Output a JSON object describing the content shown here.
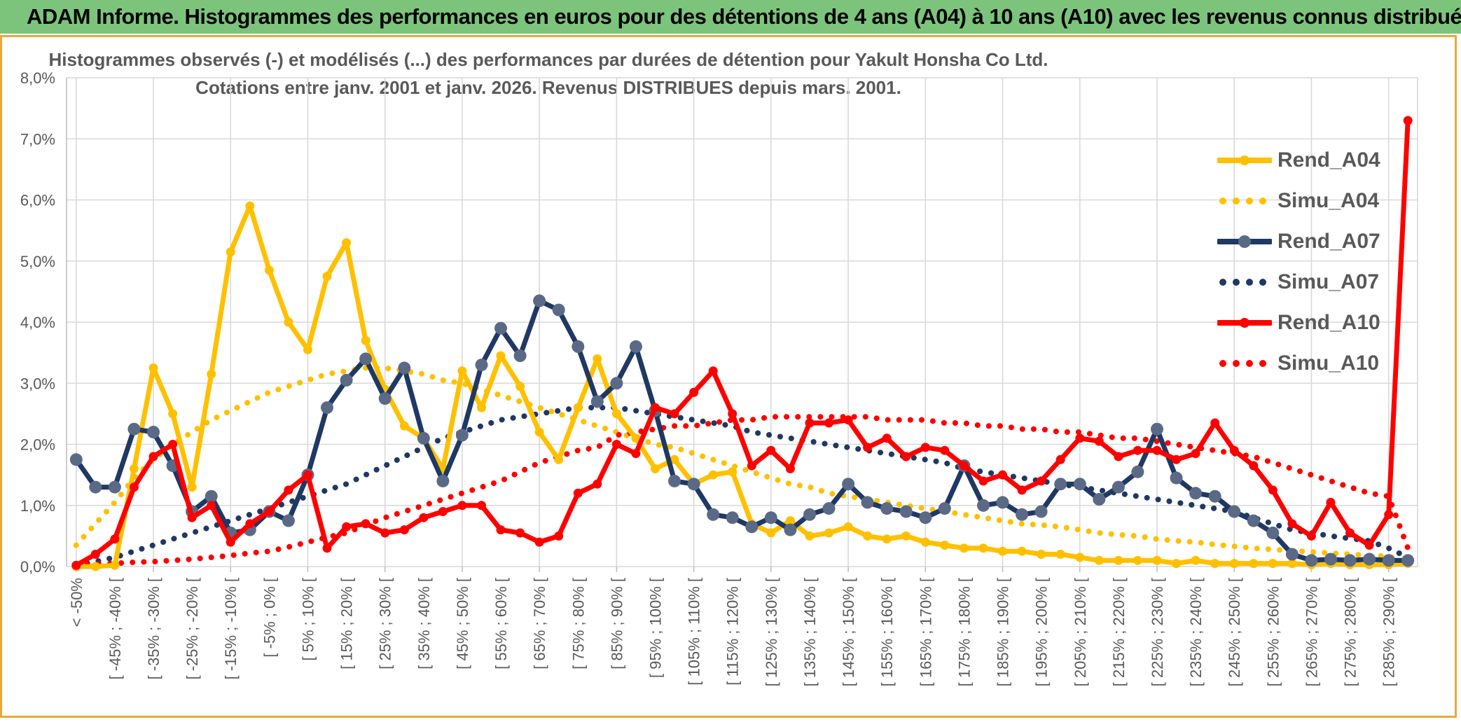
{
  "window": {
    "title": "ADAM Informe. Histogrammes des performances en euros pour des détentions de 4 ans (A04) à 10 ans (A10) avec les revenus connus distribués"
  },
  "chart": {
    "title_line1": "Histogrammes observés (-) et modélisés (...) des performances par durées de détention pour Yakult Honsha Co Ltd.",
    "title_line2": "Cotations entre janv. 2001 et janv. 2026. Revenus DISTRIBUES depuis mars. 2001.",
    "y_ticks": [
      "8,0%",
      "7,0%",
      "6,0%",
      "5,0%",
      "4,0%",
      "3,0%",
      "2,0%",
      "1,0%",
      "0,0%"
    ],
    "colors": {
      "gold": "#FFC000",
      "navy": "#1F3864",
      "red": "#FF0000",
      "navy_marker": "#5A6A86",
      "grid": "#D9D9D9",
      "text": "#595959",
      "frame_gold": "#E9A83B",
      "titlebar_green": "#7CC47C"
    }
  },
  "chart_data": {
    "type": "line",
    "title": "Histogrammes observés (-) et modélisés (...) des performances par durées de détention pour Yakult Honsha Co Ltd. Cotations entre janv. 2001 et janv. 2026. Revenus DISTRIBUES depuis mars. 2001.",
    "xlabel": "",
    "ylabel": "",
    "ylim": [
      0,
      8
    ],
    "grid": true,
    "legend_position": "right-inside",
    "x_label_note": "35 rotated bin labels shown under every second of 70 bins",
    "categories": [
      "< -50%",
      "[ -45% ; -40% [",
      "[ -35% ; -30% [",
      "[ -25% ; -20% [",
      "[ -15% ; -10% [",
      "[ -5% ; 0% [",
      "[ 5% ; 10% [",
      "[ 15% ; 20% [",
      "[ 25% ; 30% [",
      "[ 35% ; 40% [",
      "[ 45% ; 50% [",
      "[ 55% ; 60% [",
      "[ 65% ; 70% [",
      "[ 75% ; 80% [",
      "[ 85% ; 90% [",
      "[ 95% ; 100% [",
      "[ 105% ; 110% [",
      "[ 115% ; 120% [",
      "[ 125% ; 130% [",
      "[ 135% ; 140% [",
      "[ 145% ; 150% [",
      "[ 155% ; 160% [",
      "[ 165% ; 170% [",
      "[ 175% ; 180% [",
      "[ 185% ; 190% [",
      "[ 195% ; 200% [",
      "[ 205% ; 210% [",
      "[ 215% ; 220% [",
      "[ 225% ; 230% [",
      "[ 235% ; 240% [",
      "[ 245% ; 250% [",
      "[ 255% ; 260% [",
      "[ 265% ; 270% [",
      "[ 275% ; 280% [",
      "[ 285% ; 290% ["
    ],
    "series": [
      {
        "name": "Simu_A04",
        "style": "dotted",
        "color": "#FFC000",
        "marker": false,
        "values": [
          0.35,
          0.7,
          1.05,
          1.45,
          1.75,
          2.0,
          2.2,
          2.4,
          2.55,
          2.7,
          2.85,
          2.95,
          3.05,
          3.15,
          3.2,
          3.25,
          3.25,
          3.2,
          3.15,
          3.05,
          3.0,
          2.9,
          2.8,
          2.7,
          2.6,
          2.5,
          2.4,
          2.3,
          2.2,
          2.1,
          2.0,
          1.95,
          1.85,
          1.75,
          1.65,
          1.55,
          1.45,
          1.35,
          1.3,
          1.2,
          1.15,
          1.1,
          1.05,
          1.0,
          0.95,
          0.9,
          0.85,
          0.8,
          0.75,
          0.7,
          0.68,
          0.65,
          0.6,
          0.55,
          0.52,
          0.5,
          0.45,
          0.42,
          0.4,
          0.36,
          0.33,
          0.3,
          0.28,
          0.26,
          0.24,
          0.22,
          0.2,
          0.18,
          0.17,
          0.05
        ]
      },
      {
        "name": "Simu_A07",
        "style": "dotted",
        "color": "#1F3864",
        "marker": false,
        "values": [
          0.02,
          0.08,
          0.15,
          0.25,
          0.35,
          0.45,
          0.55,
          0.65,
          0.75,
          0.85,
          0.95,
          1.05,
          1.15,
          1.25,
          1.35,
          1.5,
          1.65,
          1.8,
          1.95,
          2.1,
          2.2,
          2.3,
          2.4,
          2.45,
          2.5,
          2.55,
          2.6,
          2.6,
          2.6,
          2.55,
          2.5,
          2.45,
          2.4,
          2.35,
          2.3,
          2.2,
          2.15,
          2.1,
          2.05,
          2.0,
          1.95,
          1.9,
          1.85,
          1.8,
          1.75,
          1.7,
          1.6,
          1.55,
          1.5,
          1.45,
          1.4,
          1.35,
          1.3,
          1.25,
          1.2,
          1.15,
          1.1,
          1.05,
          1.0,
          0.95,
          0.9,
          0.8,
          0.7,
          0.6,
          0.55,
          0.5,
          0.46,
          0.42,
          0.3,
          0.15
        ]
      },
      {
        "name": "Simu_A10",
        "style": "dotted",
        "color": "#FF0000",
        "marker": false,
        "values": [
          0.02,
          0.04,
          0.05,
          0.07,
          0.08,
          0.1,
          0.12,
          0.15,
          0.18,
          0.22,
          0.25,
          0.32,
          0.4,
          0.48,
          0.55,
          0.68,
          0.8,
          0.9,
          1.0,
          1.1,
          1.2,
          1.3,
          1.4,
          1.55,
          1.7,
          1.8,
          1.9,
          1.95,
          2.15,
          2.2,
          2.25,
          2.3,
          2.3,
          2.35,
          2.4,
          2.4,
          2.45,
          2.45,
          2.45,
          2.45,
          2.45,
          2.45,
          2.4,
          2.4,
          2.4,
          2.35,
          2.35,
          2.3,
          2.3,
          2.25,
          2.25,
          2.2,
          2.2,
          2.15,
          2.1,
          2.1,
          2.05,
          2.0,
          1.95,
          1.9,
          1.85,
          1.8,
          1.7,
          1.6,
          1.5,
          1.4,
          1.3,
          1.2,
          1.15,
          0.3
        ]
      },
      {
        "name": "Rend_A04",
        "style": "solid",
        "color": "#FFC000",
        "marker": true,
        "marker_color": "#FFC000",
        "values": [
          0.0,
          0.0,
          0.02,
          1.6,
          3.25,
          2.5,
          1.3,
          3.15,
          5.15,
          5.9,
          4.85,
          4.0,
          3.55,
          4.75,
          5.3,
          3.7,
          2.9,
          2.3,
          2.1,
          1.6,
          3.2,
          2.6,
          3.45,
          2.95,
          2.2,
          1.75,
          2.6,
          3.4,
          2.5,
          2.1,
          1.6,
          1.75,
          1.35,
          1.5,
          1.55,
          0.7,
          0.55,
          0.75,
          0.5,
          0.55,
          0.65,
          0.5,
          0.45,
          0.5,
          0.4,
          0.35,
          0.3,
          0.3,
          0.25,
          0.25,
          0.2,
          0.2,
          0.15,
          0.1,
          0.1,
          0.1,
          0.1,
          0.05,
          0.1,
          0.05,
          0.05,
          0.05,
          0.05,
          0.05,
          0.03,
          0.05,
          0.03,
          0.03,
          0.03,
          0.05
        ]
      },
      {
        "name": "Rend_A07",
        "style": "solid",
        "color": "#1F3864",
        "marker": true,
        "marker_color": "#5A6A86",
        "values": [
          1.75,
          1.3,
          1.3,
          2.25,
          2.2,
          1.65,
          0.9,
          1.15,
          0.55,
          0.6,
          0.9,
          0.75,
          1.5,
          2.6,
          3.05,
          3.4,
          2.75,
          3.25,
          2.1,
          1.4,
          2.15,
          3.3,
          3.9,
          3.45,
          4.35,
          4.2,
          3.6,
          2.7,
          3.0,
          3.6,
          2.55,
          1.4,
          1.35,
          0.85,
          0.8,
          0.65,
          0.8,
          0.6,
          0.85,
          0.95,
          1.35,
          1.05,
          0.95,
          0.9,
          0.8,
          0.95,
          1.65,
          1.0,
          1.05,
          0.85,
          0.9,
          1.35,
          1.35,
          1.1,
          1.3,
          1.55,
          2.25,
          1.45,
          1.2,
          1.15,
          0.9,
          0.75,
          0.55,
          0.2,
          0.1,
          0.12,
          0.1,
          0.12,
          0.1,
          0.1
        ]
      },
      {
        "name": "Rend_A10",
        "style": "solid",
        "color": "#FF0000",
        "marker": true,
        "marker_color": "#FF0000",
        "values": [
          0.02,
          0.2,
          0.45,
          1.3,
          1.8,
          2.0,
          0.8,
          1.0,
          0.4,
          0.7,
          0.9,
          1.25,
          1.5,
          0.3,
          0.65,
          0.7,
          0.55,
          0.6,
          0.8,
          0.9,
          1.0,
          1.0,
          0.6,
          0.55,
          0.4,
          0.5,
          1.2,
          1.35,
          2.0,
          1.85,
          2.6,
          2.5,
          2.85,
          3.2,
          2.5,
          1.65,
          1.9,
          1.6,
          2.35,
          2.35,
          2.4,
          1.95,
          2.1,
          1.8,
          1.95,
          1.9,
          1.65,
          1.4,
          1.5,
          1.25,
          1.4,
          1.75,
          2.1,
          2.05,
          1.8,
          1.9,
          1.9,
          1.75,
          1.85,
          2.35,
          1.9,
          1.65,
          1.25,
          0.7,
          0.5,
          1.05,
          0.55,
          0.35,
          0.85,
          7.3
        ]
      }
    ],
    "legend_entries": [
      "Rend_A04",
      "Simu_A04",
      "Rend_A07",
      "Simu_A07",
      "Rend_A10",
      "Simu_A10"
    ]
  }
}
